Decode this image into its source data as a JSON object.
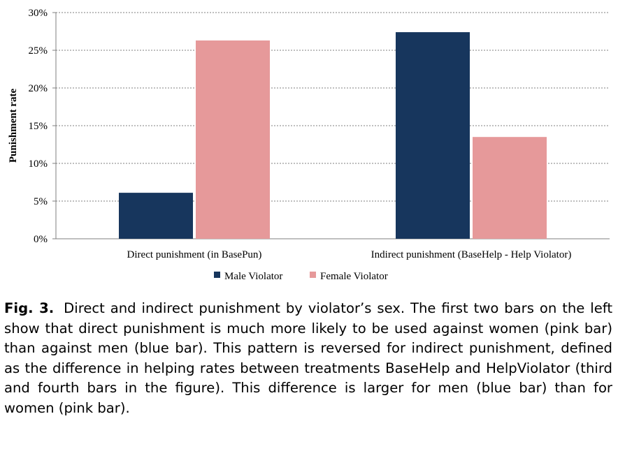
{
  "chart_data": {
    "type": "bar",
    "categories": [
      "Direct punishment (in BasePun)",
      "Indirect punishment (BaseHelp - Help Violator)"
    ],
    "series": [
      {
        "name": "Male Violator",
        "values": [
          6.1,
          27.4
        ],
        "color": "#17365d"
      },
      {
        "name": "Female Violator",
        "values": [
          26.3,
          13.5
        ],
        "color": "#e6999a"
      }
    ],
    "ylabel": "Punishment rate",
    "ylim": [
      0,
      30
    ],
    "yticks": [
      "0%",
      "5%",
      "10%",
      "15%",
      "20%",
      "25%",
      "30%"
    ],
    "ytick_values": [
      0,
      5,
      10,
      15,
      20,
      25,
      30
    ],
    "grid": true,
    "legend_position": "bottom"
  },
  "caption": {
    "figure_number": "Fig. 3.",
    "text": "Direct and indirect punishment by violator’s sex. The first two bars on the left show that direct punishment is much more likely to be used against women (pink bar) than against men (blue bar). This pattern is reversed for indirect punishment, defined as the difference in helping rates between treatments BaseHelp and HelpViolator (third and fourth bars in the figure). This difference is larger for men (blue bar) than for women (pink bar)."
  }
}
